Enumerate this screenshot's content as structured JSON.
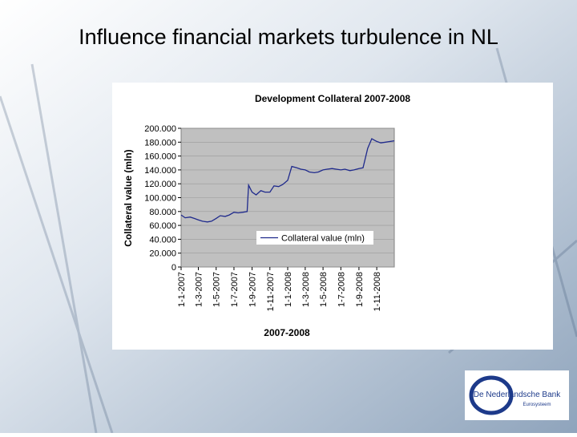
{
  "slide_title": "Influence financial markets turbulence in NL",
  "logo": {
    "name": "De Nederlandsche Bank",
    "subtitle": "Eurosysteem"
  },
  "chart_data": {
    "type": "line",
    "title": "Development Collateral 2007-2008",
    "x_label": "2007-2008",
    "y_label": "Collateral value (mln)",
    "x": [
      "1-1-2007",
      "15-1-2007",
      "1-2-2007",
      "15-2-2007",
      "1-3-2007",
      "15-3-2007",
      "1-4-2007",
      "15-4-2007",
      "1-5-2007",
      "15-5-2007",
      "1-6-2007",
      "15-6-2007",
      "1-7-2007",
      "15-7-2007",
      "1-8-2007",
      "15-8-2007",
      "20-8-2007",
      "1-9-2007",
      "15-9-2007",
      "1-10-2007",
      "15-10-2007",
      "1-11-2007",
      "15-11-2007",
      "1-12-2007",
      "15-12-2007",
      "1-1-2008",
      "15-1-2008",
      "1-2-2008",
      "15-2-2008",
      "1-3-2008",
      "15-3-2008",
      "1-4-2008",
      "15-4-2008",
      "1-5-2008",
      "15-5-2008",
      "1-6-2008",
      "15-6-2008",
      "1-7-2008",
      "15-7-2008",
      "1-8-2008",
      "15-8-2008",
      "1-9-2008",
      "15-9-2008",
      "1-10-2008",
      "15-10-2008",
      "1-11-2008",
      "15-11-2008",
      "1-12-2008",
      "31-12-2008"
    ],
    "series": [
      {
        "name": "Collateral value (mln)",
        "color": "#1f2a8c",
        "values": [
          75000,
          71000,
          72000,
          70000,
          68000,
          66000,
          65000,
          66000,
          70000,
          74000,
          73000,
          75000,
          79000,
          78000,
          79000,
          80000,
          118000,
          108000,
          104000,
          110000,
          108000,
          108000,
          117000,
          116000,
          119000,
          125000,
          145000,
          143000,
          141000,
          140000,
          137000,
          136000,
          137000,
          140000,
          141000,
          142000,
          141000,
          140000,
          141000,
          139000,
          140000,
          142000,
          143000,
          171000,
          185000,
          181000,
          179000,
          180000,
          182000
        ]
      }
    ],
    "xlim": [
      "1-1-2007",
      "31-12-2008"
    ],
    "xticks": [
      "1-1-2007",
      "1-3-2007",
      "1-5-2007",
      "1-7-2007",
      "1-9-2007",
      "1-11-2007",
      "1-1-2008",
      "1-3-2008",
      "1-5-2008",
      "1-7-2008",
      "1-9-2008",
      "1-11-2008"
    ],
    "ylim": [
      0,
      200000
    ],
    "yticks": [
      0,
      {
        "value": 20000,
        "label": "20.000"
      },
      {
        "value": 40000,
        "label": "40.000"
      },
      {
        "value": 60000,
        "label": "60.000"
      },
      {
        "value": 80000,
        "label": "80.000"
      },
      {
        "value": 100000,
        "label": "100.000"
      },
      {
        "value": 120000,
        "label": "120.000"
      },
      {
        "value": 140000,
        "label": "140.000"
      },
      {
        "value": 160000,
        "label": "160.000"
      },
      {
        "value": 180000,
        "label": "180.000"
      },
      {
        "value": 200000,
        "label": "200.000"
      }
    ],
    "grid": true,
    "legend": "lower-right"
  }
}
